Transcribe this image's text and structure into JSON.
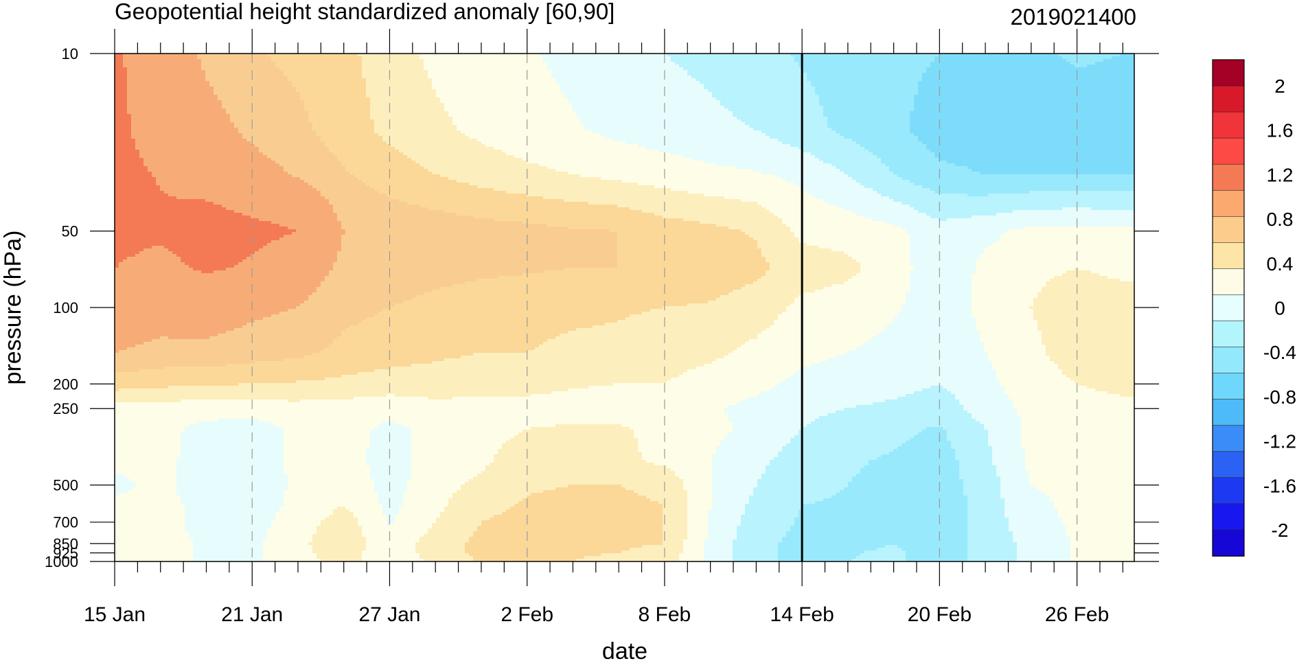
{
  "chart_data": {
    "type": "heatmap",
    "title": "Geopotential height standardized anomaly [60,90]",
    "timestamp": "2019021400",
    "xlabel": "date",
    "ylabel": "pressure (hPa)",
    "x_ticks": [
      {
        "label": "15 Jan",
        "day": 0
      },
      {
        "label": "21 Jan",
        "day": 6
      },
      {
        "label": "27 Jan",
        "day": 12
      },
      {
        "label": "2 Feb",
        "day": 18
      },
      {
        "label": "8 Feb",
        "day": 24
      },
      {
        "label": "14 Feb",
        "day": 30
      },
      {
        "label": "20 Feb",
        "day": 36
      },
      {
        "label": "26 Feb",
        "day": 42
      }
    ],
    "y_ticks": [
      {
        "label": "10",
        "p": 10
      },
      {
        "label": "50",
        "p": 50
      },
      {
        "label": "100",
        "p": 100
      },
      {
        "label": "200",
        "p": 200
      },
      {
        "label": "250",
        "p": 250
      },
      {
        "label": "500",
        "p": 500
      },
      {
        "label": "700",
        "p": 700
      },
      {
        "label": "850",
        "p": 850
      },
      {
        "label": "925",
        "p": 925
      },
      {
        "label": "1000",
        "p": 1000
      }
    ],
    "current_date_line": "14 Feb",
    "colorbar": {
      "labels": [
        "2",
        "1.6",
        "1.2",
        "0.8",
        "0.4",
        "0",
        "-0.4",
        "-0.8",
        "-1.2",
        "-1.6",
        "-2"
      ],
      "colors": [
        "#a50026",
        "#d7192a",
        "#f0343a",
        "#fe4a44",
        "#f47a55",
        "#fba96f",
        "#fbcc8c",
        "#fde5a7",
        "#fefce6",
        "#e6fefe",
        "#b3f5fd",
        "#93e8fc",
        "#6fd7fb",
        "#4ebbf8",
        "#3a8cf6",
        "#2b62f4",
        "#1e39f2",
        "#1917f0",
        "#1607d7"
      ]
    },
    "pressure_levels": [
      10,
      20,
      30,
      50,
      70,
      100,
      150,
      200,
      250,
      300,
      400,
      500,
      600,
      700,
      850,
      925,
      1000
    ],
    "days": [
      0,
      2,
      4,
      6,
      8,
      10,
      12,
      14,
      16,
      18,
      20,
      22,
      24,
      26,
      28,
      30,
      32,
      34,
      36,
      38,
      40,
      42,
      44
    ],
    "values": [
      [
        1.25,
        1.0,
        0.75,
        0.62,
        0.55,
        0.45,
        0.3,
        0.15,
        0.05,
        0.02,
        -0.05,
        -0.12,
        -0.2,
        -0.25,
        -0.35,
        -0.42,
        -0.5,
        -0.55,
        -0.6,
        -0.6,
        -0.62,
        -0.58,
        -0.6
      ],
      [
        1.28,
        1.05,
        0.9,
        0.75,
        0.65,
        0.5,
        0.35,
        0.25,
        0.15,
        0.08,
        0.02,
        -0.05,
        -0.1,
        -0.15,
        -0.2,
        -0.32,
        -0.45,
        -0.55,
        -0.7,
        -0.72,
        -0.72,
        -0.68,
        -0.7
      ],
      [
        1.3,
        1.18,
        1.05,
        0.9,
        0.78,
        0.62,
        0.5,
        0.4,
        0.32,
        0.25,
        0.2,
        0.15,
        0.1,
        0.05,
        0.02,
        -0.05,
        -0.2,
        -0.4,
        -0.55,
        -0.6,
        -0.6,
        -0.6,
        -0.6
      ],
      [
        1.3,
        1.25,
        1.38,
        1.3,
        1.2,
        0.8,
        0.75,
        0.72,
        0.68,
        0.66,
        0.62,
        0.6,
        0.5,
        0.45,
        0.38,
        0.15,
        0.12,
        0.05,
        -0.12,
        -0.05,
        0.05,
        0.07,
        0.05
      ],
      [
        1.2,
        1.1,
        1.25,
        1.15,
        0.95,
        0.75,
        0.7,
        0.66,
        0.64,
        0.62,
        0.6,
        0.6,
        0.55,
        0.52,
        0.45,
        0.3,
        0.25,
        0.1,
        -0.15,
        0.05,
        0.15,
        0.2,
        0.15
      ],
      [
        1.0,
        0.9,
        0.92,
        0.85,
        0.8,
        0.65,
        0.6,
        0.55,
        0.5,
        0.48,
        0.45,
        0.42,
        0.4,
        0.38,
        0.3,
        0.15,
        0.1,
        0.02,
        -0.1,
        0.05,
        0.2,
        0.35,
        0.3
      ],
      [
        0.8,
        0.75,
        0.75,
        0.7,
        0.65,
        0.55,
        0.5,
        0.45,
        0.4,
        0.4,
        0.35,
        0.35,
        0.3,
        0.25,
        0.15,
        0.05,
        0.0,
        -0.05,
        -0.15,
        0.0,
        0.15,
        0.3,
        0.35
      ],
      [
        0.5,
        0.45,
        0.42,
        0.4,
        0.38,
        0.35,
        0.3,
        0.28,
        0.25,
        0.25,
        0.22,
        0.2,
        0.2,
        0.1,
        0.05,
        -0.05,
        -0.08,
        -0.12,
        -0.2,
        -0.05,
        0.1,
        0.2,
        0.25
      ],
      [
        0.1,
        0.1,
        0.08,
        0.1,
        0.12,
        0.1,
        0.08,
        0.15,
        0.15,
        0.15,
        0.12,
        0.1,
        0.05,
        0.02,
        -0.05,
        -0.15,
        -0.2,
        -0.25,
        -0.32,
        -0.1,
        0.05,
        0.12,
        0.15
      ],
      [
        0.05,
        0.05,
        -0.05,
        -0.1,
        0.05,
        0.08,
        -0.05,
        0.05,
        0.1,
        0.2,
        0.22,
        0.22,
        0.15,
        0.05,
        -0.05,
        -0.2,
        -0.3,
        -0.35,
        -0.42,
        -0.2,
        0.05,
        0.12,
        0.15
      ],
      [
        0.05,
        0.05,
        -0.08,
        -0.12,
        0.05,
        0.1,
        -0.1,
        0.1,
        0.15,
        0.35,
        0.25,
        0.25,
        0.15,
        0.0,
        -0.15,
        -0.3,
        -0.38,
        -0.42,
        -0.5,
        -0.25,
        0.05,
        0.1,
        0.12
      ],
      [
        -0.05,
        0.05,
        -0.1,
        -0.15,
        0.05,
        0.15,
        -0.08,
        0.12,
        0.25,
        0.38,
        0.4,
        0.4,
        0.35,
        0.0,
        -0.2,
        -0.35,
        -0.4,
        -0.45,
        -0.5,
        -0.3,
        0.0,
        0.05,
        0.1
      ],
      [
        0.05,
        0.05,
        -0.05,
        -0.1,
        0.05,
        0.2,
        -0.05,
        0.15,
        0.35,
        0.42,
        0.45,
        0.45,
        0.4,
        0.0,
        -0.25,
        -0.4,
        -0.42,
        -0.45,
        -0.55,
        -0.3,
        -0.05,
        0.05,
        0.1
      ],
      [
        0.05,
        0.05,
        -0.05,
        -0.08,
        0.1,
        0.3,
        -0.02,
        0.2,
        0.4,
        0.45,
        0.48,
        0.45,
        0.4,
        -0.02,
        -0.3,
        -0.42,
        -0.45,
        -0.45,
        -0.55,
        -0.3,
        -0.1,
        0.05,
        0.08
      ],
      [
        0.05,
        0.05,
        -0.02,
        -0.05,
        0.15,
        0.35,
        0.05,
        0.3,
        0.45,
        0.48,
        0.45,
        0.42,
        0.4,
        -0.05,
        -0.35,
        -0.45,
        -0.48,
        -0.4,
        -0.55,
        -0.3,
        -0.15,
        0.02,
        0.05
      ],
      [
        0.05,
        0.05,
        -0.02,
        -0.05,
        0.15,
        0.3,
        0.05,
        0.3,
        0.45,
        0.45,
        0.42,
        0.4,
        0.35,
        -0.05,
        -0.35,
        -0.45,
        -0.42,
        -0.35,
        -0.55,
        -0.3,
        -0.15,
        0.02,
        0.05
      ],
      [
        0.05,
        0.05,
        -0.02,
        -0.05,
        0.12,
        0.28,
        0.05,
        0.25,
        0.42,
        0.42,
        0.4,
        0.35,
        0.3,
        -0.05,
        -0.35,
        -0.45,
        -0.4,
        -0.35,
        -0.55,
        -0.3,
        -0.15,
        0.02,
        0.05
      ]
    ]
  }
}
